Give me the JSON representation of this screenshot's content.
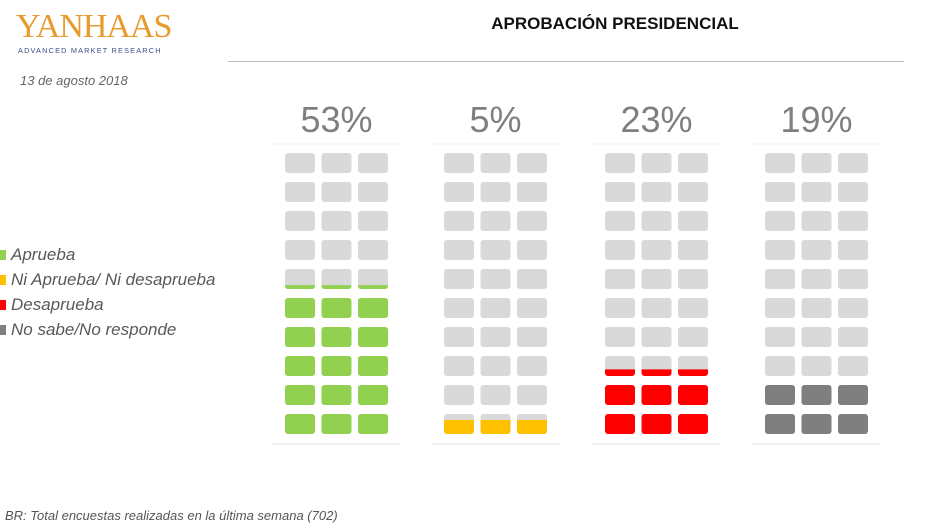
{
  "brand": {
    "logo_text": "YANHAAS",
    "logo_subtitle": "ADVANCED MARKET RESEARCH"
  },
  "date": "13  de agosto 2018",
  "footnote": "BR: Total encuestas realizadas en la última semana (702)",
  "colors": {
    "empty_cell": "#d9d9d9"
  },
  "chart_data": {
    "type": "waffle",
    "title": "APROBACIÓN PRESIDENCIAL",
    "grid": {
      "rows": 10,
      "cols": 3
    },
    "legend_position": "left",
    "series": [
      {
        "name": "Aprueba",
        "value": 53,
        "label": "53%",
        "color": "#92d050"
      },
      {
        "name": "Ni Aprueba/ Ni desaprueba",
        "value": 5,
        "label": "5%",
        "color": "#ffc000"
      },
      {
        "name": "Desaprueba",
        "value": 23,
        "label": "23%",
        "color": "#ff0000"
      },
      {
        "name": "No sabe/No responde",
        "value": 19,
        "label": "19%",
        "color": "#7f7f7f"
      }
    ]
  }
}
